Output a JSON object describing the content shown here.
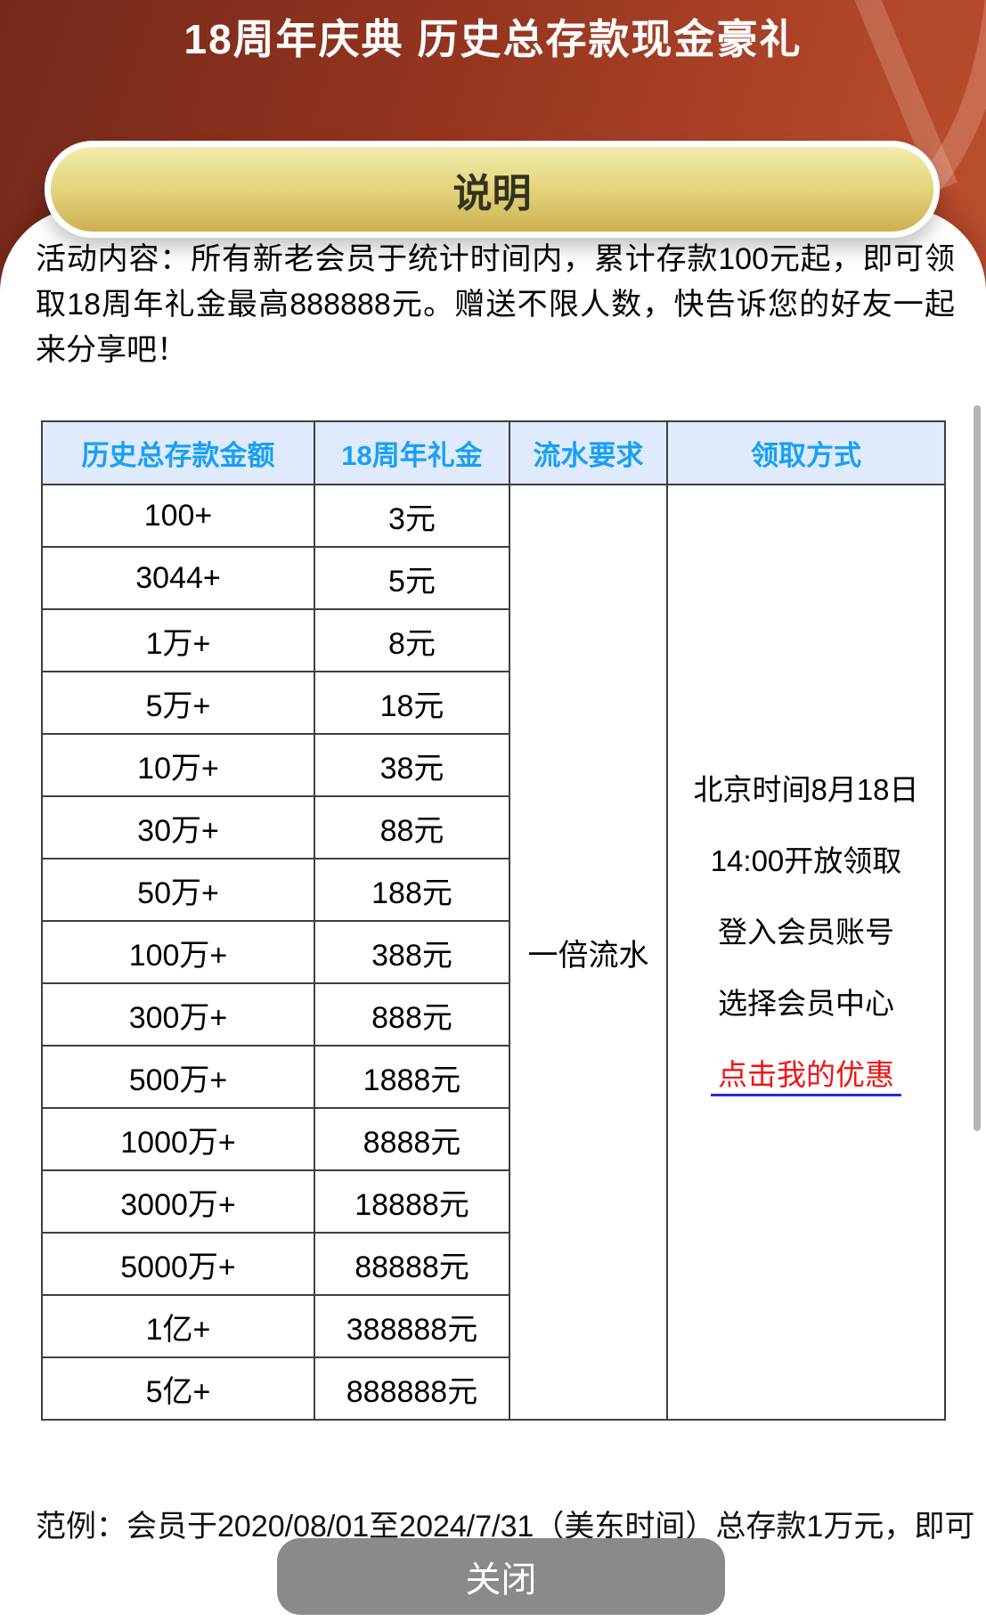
{
  "page": {
    "title": "18周年庆典 历史总存款现金豪礼",
    "explain_badge": "说明",
    "description": "活动内容：所有新老会员于统计时间内，累计存款100元起，即可领取18周年礼金最高888888元。赠送不限人数，快告诉您的好友一起来分享吧！",
    "footer_note": "范例：会员于2020/08/01至2024/7/31（美东时间）总存款1万元，即可",
    "close_label": "关闭"
  },
  "table": {
    "headers": [
      "历史总存款金额",
      "18周年礼金",
      "流水要求",
      "领取方式"
    ],
    "rows": [
      [
        "100+",
        "3元"
      ],
      [
        "3044+",
        "5元"
      ],
      [
        "1万+",
        "8元"
      ],
      [
        "5万+",
        "18元"
      ],
      [
        "10万+",
        "38元"
      ],
      [
        "30万+",
        "88元"
      ],
      [
        "50万+",
        "188元"
      ],
      [
        "100万+",
        "388元"
      ],
      [
        "300万+",
        "888元"
      ],
      [
        "500万+",
        "1888元"
      ],
      [
        "1000万+",
        "8888元"
      ],
      [
        "3000万+",
        "18888元"
      ],
      [
        "5000万+",
        "88888元"
      ],
      [
        "1亿+",
        "388888元"
      ],
      [
        "5亿+",
        "888888元"
      ]
    ],
    "turnover_requirement": "一倍流水",
    "claim_lines": [
      "北京时间8月18日",
      "14:00开放领取",
      "登入会员账号",
      "选择会员中心"
    ],
    "claim_link": "点击我的优惠"
  },
  "colors": {
    "header_accent_blue": "#18a0f6",
    "table_header_bg": "#dfeafd",
    "table_border": "#3f3f3f",
    "link_red": "#f21414",
    "link_underline_blue": "#2b2bd5",
    "gold_button_top": "#f2ecab",
    "gold_button_bottom": "#ccb153",
    "background_dark": "#74291b",
    "background_light": "#c8603c",
    "close_button_gray": "#8a8a8a"
  }
}
